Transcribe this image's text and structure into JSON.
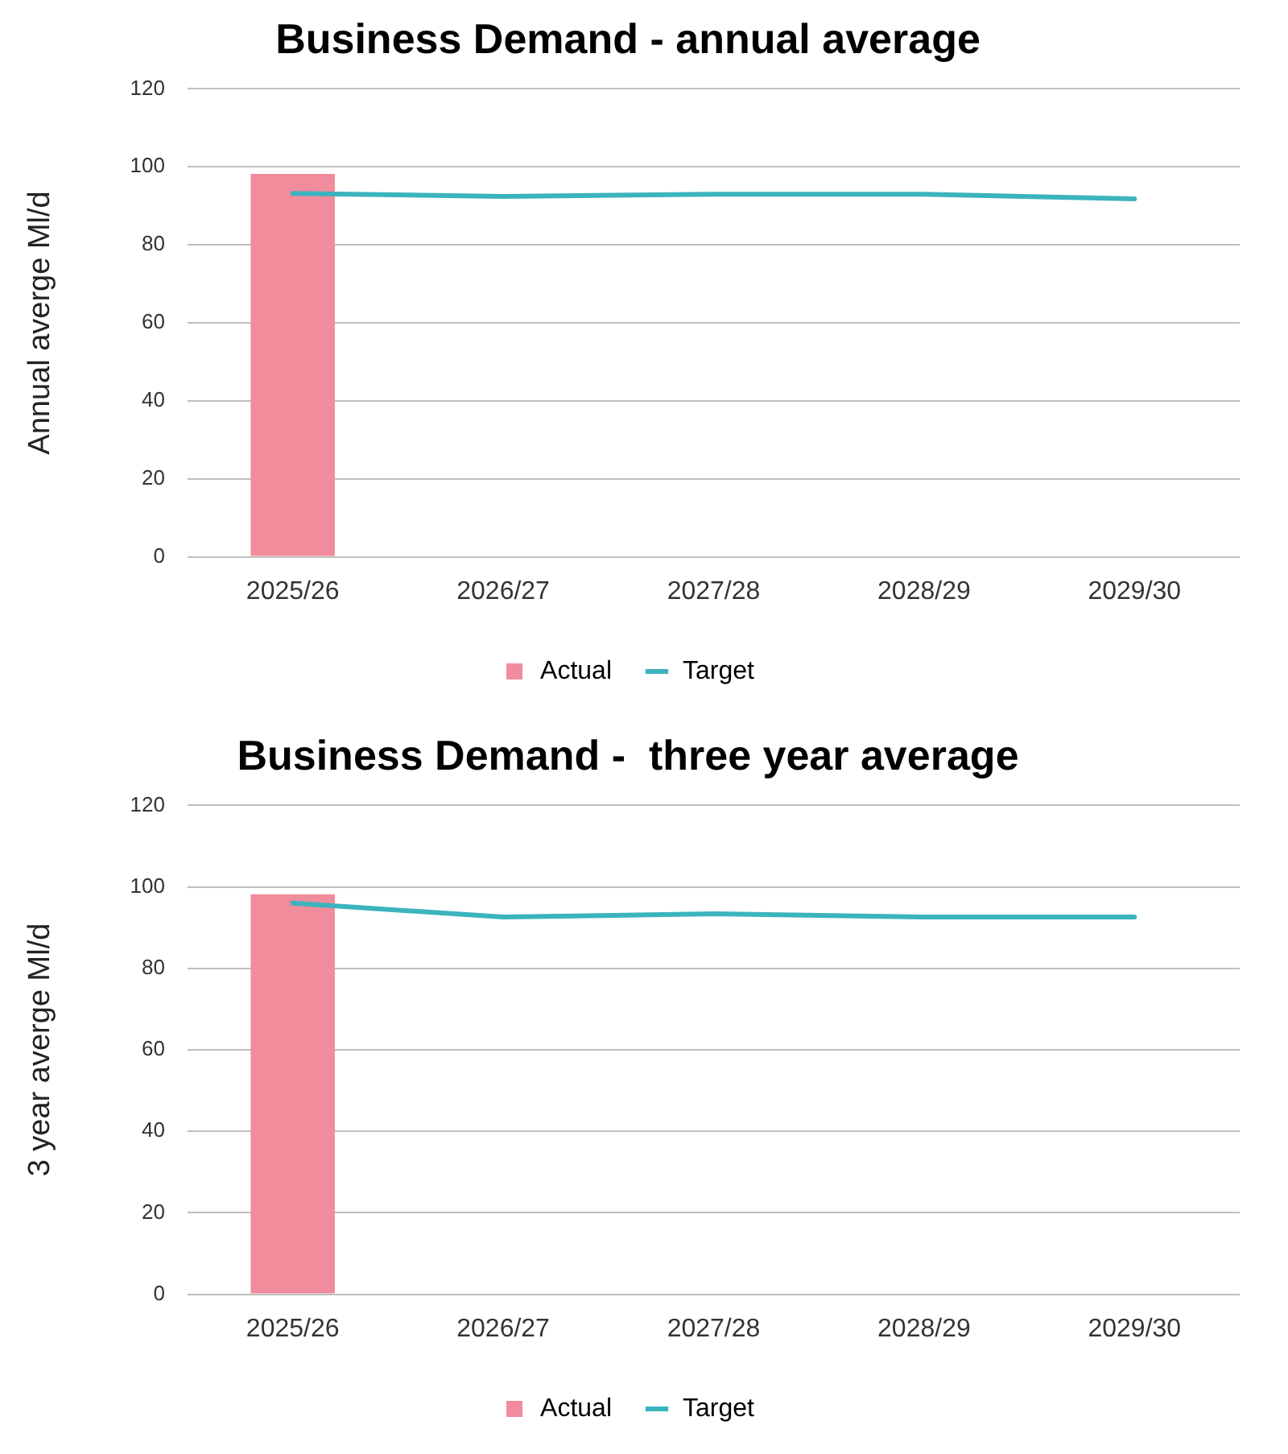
{
  "chart_data": [
    {
      "type": "bar",
      "title": "Business Demand - annual average",
      "ylabel": "Annual averge Ml/d",
      "categories": [
        "2025/26",
        "2026/27",
        "2027/28",
        "2028/29",
        "2029/30"
      ],
      "series": [
        {
          "name": "Actual",
          "color": "#f08c9c",
          "values": [
            98.2,
            null,
            null,
            null,
            null
          ]
        },
        {
          "name": "Target",
          "type": "line",
          "color": "#3cb4bf",
          "values": [
            93.2,
            92.4,
            93,
            93,
            91.8
          ]
        }
      ],
      "ylim": [
        0,
        120
      ],
      "yticks": [
        0,
        20,
        40,
        60,
        80,
        100,
        120
      ],
      "grid": "y",
      "legend": "bottom",
      "marker": "none",
      "line_style": "solid"
    },
    {
      "type": "bar",
      "title": "Business Demand -  three year average",
      "ylabel": "3 year averge Ml/d",
      "categories": [
        "2025/26",
        "2026/27",
        "2027/28",
        "2028/29",
        "2029/30"
      ],
      "series": [
        {
          "name": "Actual",
          "color": "#f08c9c",
          "values": [
            98.2,
            null,
            null,
            null,
            null
          ]
        },
        {
          "name": "Target",
          "type": "line",
          "color": "#3cb4bf",
          "values": [
            96,
            92.6,
            93.4,
            92.6,
            92.6
          ]
        }
      ],
      "ylim": [
        0,
        120
      ],
      "yticks": [
        0,
        20,
        40,
        60,
        80,
        100,
        120
      ],
      "grid": "y",
      "legend": "bottom",
      "marker": "none",
      "line_style": "solid"
    }
  ]
}
